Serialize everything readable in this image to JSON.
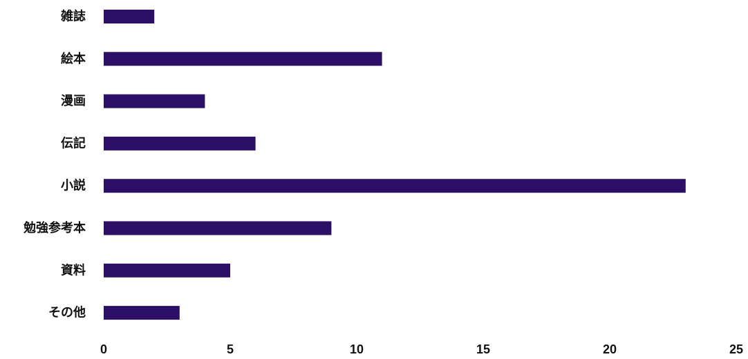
{
  "chart_data": {
    "type": "bar",
    "orientation": "horizontal",
    "categories": [
      "雑誌",
      "絵本",
      "漫画",
      "伝記",
      "小説",
      "勉強参考本",
      "資料",
      "その他"
    ],
    "values": [
      2,
      11,
      4,
      6,
      23,
      9,
      5,
      3
    ],
    "title": "",
    "xlabel": "",
    "ylabel": "",
    "xlim": [
      0,
      25
    ],
    "xticks": [
      "0",
      "5",
      "10",
      "15",
      "20",
      "25"
    ],
    "grid": false,
    "legend": "none",
    "bar_color": "#2b1066"
  }
}
